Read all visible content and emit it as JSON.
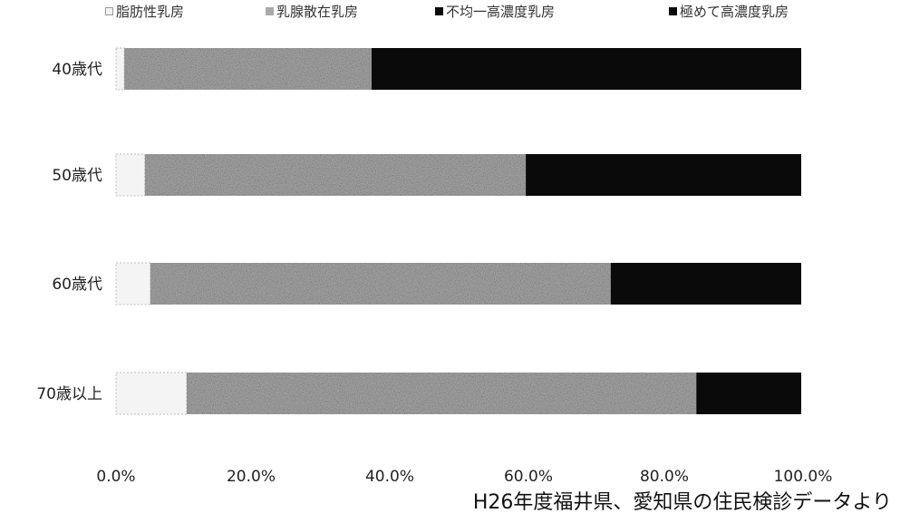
{
  "chart_data": {
    "type": "bar",
    "orientation": "horizontal",
    "stacked": true,
    "categories": [
      "40歳代",
      "50歳代",
      "60歳代",
      "70歳以上"
    ],
    "series": [
      {
        "name": "脂肪性乳房",
        "color": "#f4f4f4",
        "values": [
          1.2,
          4.2,
          5.0,
          10.3
        ]
      },
      {
        "name": "乳腺散在乳房",
        "color": "#a9a9a9",
        "values": [
          36.1,
          55.6,
          67.2,
          74.4
        ]
      },
      {
        "name": "不均一高濃度乳房",
        "color": "#0a0a0a",
        "values": [
          62.7,
          40.2,
          27.8,
          15.3
        ]
      },
      {
        "name": "極めて高濃度乳房",
        "color": "#0a0a0a",
        "values": [
          0,
          0,
          0,
          0
        ]
      }
    ],
    "xlim": [
      0,
      100
    ],
    "x_ticks": [
      "0.0%",
      "20.0%",
      "40.0%",
      "60.0%",
      "80.0%",
      "100.0%"
    ],
    "legend_position": "top",
    "grid": false
  },
  "footer": {
    "source": "H26年度福井県、愛知県の住民検診データより"
  }
}
